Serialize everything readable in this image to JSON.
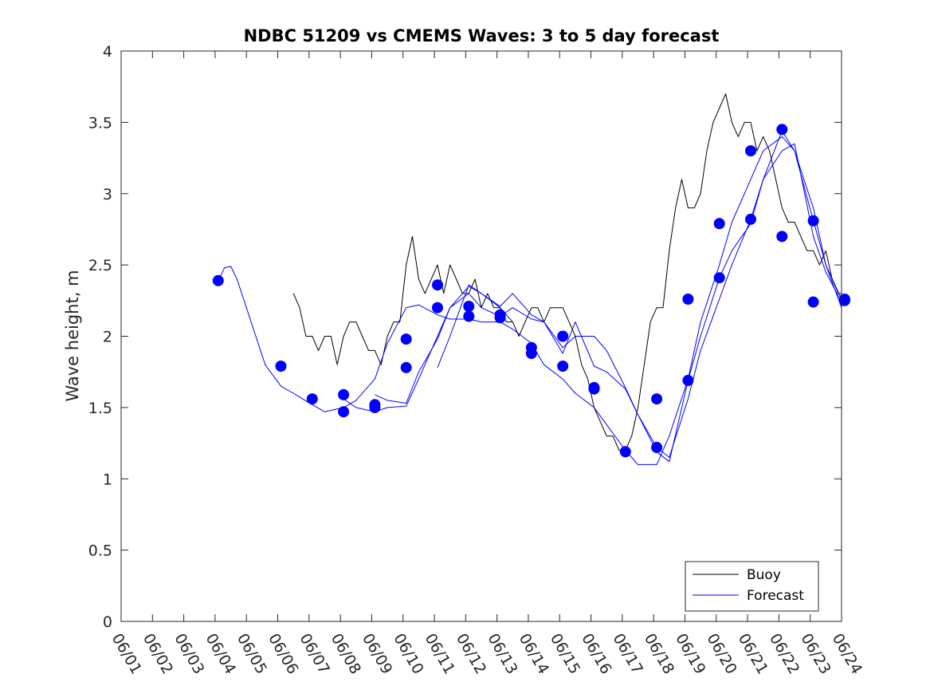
{
  "chart_data": {
    "type": "line",
    "title": "NDBC 51209 vs CMEMS Waves: 3 to 5 day forecast",
    "xlabel": "",
    "ylabel": "Wave height, m",
    "x_unit": "days since 06/01 (tick labels are dates)",
    "xlim": [
      0,
      23
    ],
    "ylim": [
      0,
      4
    ],
    "x_tick_labels": [
      "06/01",
      "06/02",
      "06/03",
      "06/04",
      "06/05",
      "06/06",
      "06/07",
      "06/08",
      "06/09",
      "06/10",
      "06/11",
      "06/12",
      "06/13",
      "06/14",
      "06/15",
      "06/16",
      "06/17",
      "06/18",
      "06/19",
      "06/20",
      "06/21",
      "06/22",
      "06/23",
      "06/24"
    ],
    "y_ticks": [
      0,
      0.5,
      1,
      1.5,
      2,
      2.5,
      3,
      3.5,
      4
    ],
    "y_tick_labels": [
      "0",
      "0.5",
      "1",
      "1.5",
      "2",
      "2.5",
      "3",
      "3.5",
      "4"
    ],
    "grid": false,
    "legend": {
      "position": "bottom-right",
      "entries": [
        "Buoy",
        "Forecast"
      ]
    },
    "colors": {
      "buoy": "#000000",
      "forecast": "#0000ff",
      "axes": "#262626"
    },
    "series": [
      {
        "name": "Buoy",
        "color": "#000000",
        "x": [
          5.5,
          5.7,
          5.9,
          6.1,
          6.3,
          6.5,
          6.7,
          6.9,
          7.1,
          7.3,
          7.5,
          7.7,
          7.9,
          8.1,
          8.3,
          8.5,
          8.7,
          8.9,
          9.1,
          9.3,
          9.5,
          9.7,
          9.9,
          10.1,
          10.3,
          10.5,
          10.7,
          10.9,
          11.1,
          11.3,
          11.5,
          11.7,
          11.9,
          12.1,
          12.3,
          12.5,
          12.7,
          12.9,
          13.1,
          13.3,
          13.5,
          13.7,
          13.9,
          14.1,
          14.3,
          14.5,
          14.7,
          14.9,
          15.1,
          15.3,
          15.5,
          15.7,
          15.9,
          16.1,
          16.3,
          16.5,
          16.7,
          16.9,
          17.1,
          17.3,
          17.5,
          17.7,
          17.9,
          18.1,
          18.3,
          18.5,
          18.7,
          18.9,
          19.1,
          19.3,
          19.5,
          19.7,
          19.9,
          20.1,
          20.3,
          20.5,
          20.7,
          20.9,
          21.1,
          21.3,
          21.5,
          21.7,
          21.9,
          22.1,
          22.3,
          22.5,
          22.7,
          22.9,
          23.1,
          23.2
        ],
        "y": [
          2.3,
          2.2,
          2.0,
          2.0,
          1.9,
          2.0,
          2.0,
          1.8,
          2.0,
          2.1,
          2.1,
          2.0,
          1.9,
          1.9,
          1.8,
          2.0,
          2.1,
          2.1,
          2.5,
          2.7,
          2.4,
          2.3,
          2.4,
          2.5,
          2.3,
          2.5,
          2.4,
          2.3,
          2.3,
          2.4,
          2.2,
          2.3,
          2.2,
          2.2,
          2.1,
          2.1,
          2.0,
          2.1,
          2.2,
          2.2,
          2.1,
          2.2,
          2.2,
          2.2,
          2.1,
          2.0,
          1.8,
          1.7,
          1.5,
          1.4,
          1.3,
          1.3,
          1.2,
          1.2,
          1.3,
          1.5,
          1.8,
          2.1,
          2.2,
          2.2,
          2.6,
          2.9,
          3.1,
          2.9,
          2.9,
          3.0,
          3.3,
          3.5,
          3.6,
          3.7,
          3.5,
          3.4,
          3.5,
          3.5,
          3.3,
          3.4,
          3.3,
          3.1,
          2.9,
          2.8,
          2.8,
          2.7,
          2.6,
          2.6,
          2.5,
          2.6,
          2.4,
          2.3,
          2.3,
          2.6
        ]
      },
      {
        "name": "Forecast",
        "color": "#0000ff",
        "x": [
          3.1,
          3.3,
          3.5,
          3.7,
          4.0,
          4.3,
          4.6,
          5.1,
          5.5,
          6.1,
          6.5,
          7.1,
          7.5,
          8.1,
          8.5,
          9.1,
          9.5,
          10.1,
          10.5,
          11.1,
          11.5,
          12.1,
          12.5,
          13.1,
          13.5,
          14.1,
          14.5,
          15.1,
          15.5,
          16.1,
          16.5,
          17.1,
          17.5,
          18.1,
          18.5,
          19.1,
          19.5,
          20.1,
          20.5,
          21.1,
          21.5,
          22.1,
          22.5,
          23.0
        ],
        "y": [
          2.39,
          2.48,
          2.49,
          2.4,
          2.2,
          2.0,
          1.8,
          1.65,
          1.6,
          1.52,
          1.47,
          1.5,
          1.55,
          1.7,
          1.95,
          2.2,
          2.22,
          2.15,
          2.12,
          2.12,
          2.1,
          2.1,
          2.05,
          1.95,
          1.8,
          1.7,
          1.6,
          1.5,
          1.38,
          1.2,
          1.1,
          1.1,
          1.3,
          1.7,
          2.1,
          2.5,
          2.8,
          3.1,
          3.3,
          3.4,
          3.3,
          2.9,
          2.5,
          2.2
        ]
      },
      {
        "name": "",
        "color": "#0000ff",
        "x": [
          7.1,
          7.5,
          8.1,
          8.5,
          9.1,
          9.5,
          10.1,
          10.5,
          11.1,
          11.5,
          12.1,
          12.5
        ],
        "y": [
          1.56,
          1.5,
          1.47,
          1.5,
          1.51,
          1.7,
          2.0,
          2.2,
          2.35,
          2.3,
          2.2,
          2.1
        ]
      },
      {
        "name": "",
        "color": "#0000ff",
        "x": [
          8.1,
          8.5,
          9.1,
          9.5,
          10.1,
          10.5,
          11.1,
          11.5,
          12.1,
          12.5,
          13.1,
          13.5,
          14.1,
          14.5,
          15.1,
          15.5,
          16.1,
          16.5,
          17.1,
          17.5,
          18.1,
          18.5,
          19.1,
          19.5,
          20.1,
          20.5,
          21.1,
          21.5,
          22.1,
          22.5,
          23.1,
          23.5,
          24.0
        ],
        "y": [
          1.59,
          1.55,
          1.53,
          1.75,
          1.98,
          2.2,
          2.3,
          2.2,
          2.14,
          2.2,
          2.12,
          2.1,
          1.92,
          2.0,
          2.0,
          1.9,
          1.64,
          1.45,
          1.22,
          1.15,
          1.56,
          1.9,
          2.26,
          2.5,
          2.82,
          3.1,
          3.44,
          3.3,
          2.81,
          2.5,
          2.26,
          2.1,
          2.05
        ]
      },
      {
        "name": "",
        "color": "#0000ff",
        "x": [
          10.1,
          10.5,
          11.1,
          11.5,
          12.1,
          12.5,
          13.1,
          13.5,
          14.1,
          14.5,
          15.1,
          15.5,
          16.1,
          16.5,
          17.1,
          17.5,
          18.1,
          18.5,
          19.1,
          19.5,
          20.1,
          20.5,
          21.1,
          21.5,
          22.1,
          22.5,
          23.1,
          23.5,
          24.0
        ],
        "y": [
          1.78,
          2.0,
          2.36,
          2.3,
          2.21,
          2.3,
          2.15,
          2.1,
          1.88,
          2.1,
          1.79,
          1.75,
          1.63,
          1.45,
          1.19,
          1.12,
          1.69,
          2.0,
          2.41,
          2.6,
          2.79,
          3.1,
          3.3,
          3.35,
          2.7,
          2.45,
          2.24,
          2.05,
          1.95
        ]
      }
    ],
    "markers": {
      "color": "#0000ff",
      "x": [
        3.1,
        5.1,
        6.1,
        7.1,
        7.1,
        8.1,
        8.1,
        9.1,
        9.1,
        10.1,
        10.1,
        11.1,
        11.1,
        12.1,
        12.1,
        13.1,
        13.1,
        14.1,
        14.1,
        15.1,
        15.1,
        16.1,
        17.1,
        17.1,
        18.1,
        18.1,
        19.1,
        19.1,
        20.1,
        20.1,
        21.1,
        21.1,
        22.1,
        22.1,
        23.1,
        23.1
      ],
      "y": [
        2.39,
        1.79,
        1.56,
        1.59,
        1.47,
        1.5,
        1.52,
        1.78,
        1.98,
        2.2,
        2.36,
        2.14,
        2.21,
        2.13,
        2.15,
        1.88,
        1.92,
        1.79,
        2.0,
        1.64,
        1.63,
        1.19,
        1.22,
        1.56,
        1.69,
        2.26,
        2.41,
        2.79,
        2.82,
        3.3,
        3.45,
        2.7,
        2.81,
        2.24,
        2.26,
        2.25
      ]
    }
  }
}
